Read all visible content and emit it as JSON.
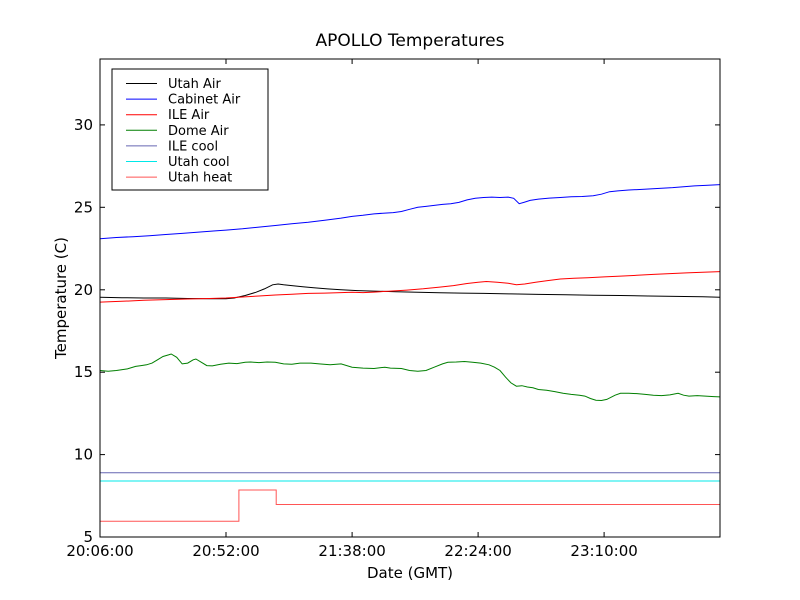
{
  "figure": {
    "title": "APOLLO Temperatures",
    "background": "#ffffff"
  },
  "chart_data": {
    "type": "line",
    "title": "APOLLO Temperatures",
    "xlabel": "Date (GMT)",
    "ylabel": "Temperature (C)",
    "x_unit": "minutes after 20:06:00 GMT",
    "xlim": [
      0,
      226.3
    ],
    "ylim": [
      5,
      34
    ],
    "grid": false,
    "legend_position": "upper left",
    "x_ticks": [
      {
        "t": 0,
        "label": "20:06:00"
      },
      {
        "t": 46,
        "label": "20:52:00"
      },
      {
        "t": 92,
        "label": "21:38:00"
      },
      {
        "t": 138,
        "label": "22:24:00"
      },
      {
        "t": 184,
        "label": "23:10:00"
      }
    ],
    "y_ticks": [
      5,
      10,
      15,
      20,
      25,
      30
    ],
    "series": [
      {
        "name": "Utah Air",
        "color": "#000000",
        "points": [
          [
            0,
            19.55
          ],
          [
            8,
            19.52
          ],
          [
            16,
            19.5
          ],
          [
            24,
            19.5
          ],
          [
            32,
            19.47
          ],
          [
            40,
            19.45
          ],
          [
            46,
            19.45
          ],
          [
            49,
            19.5
          ],
          [
            53,
            19.65
          ],
          [
            57,
            19.85
          ],
          [
            60,
            20.05
          ],
          [
            63,
            20.3
          ],
          [
            65,
            20.35
          ],
          [
            67,
            20.3
          ],
          [
            70,
            20.25
          ],
          [
            74,
            20.18
          ],
          [
            78,
            20.12
          ],
          [
            83,
            20.05
          ],
          [
            88,
            20.0
          ],
          [
            94,
            19.95
          ],
          [
            100,
            19.92
          ],
          [
            108,
            19.88
          ],
          [
            116,
            19.85
          ],
          [
            124,
            19.82
          ],
          [
            132,
            19.8
          ],
          [
            140,
            19.78
          ],
          [
            150,
            19.75
          ],
          [
            160,
            19.72
          ],
          [
            170,
            19.7
          ],
          [
            180,
            19.67
          ],
          [
            190,
            19.65
          ],
          [
            200,
            19.62
          ],
          [
            210,
            19.6
          ],
          [
            220,
            19.57
          ],
          [
            226.3,
            19.55
          ]
        ]
      },
      {
        "name": "Cabinet Air",
        "color": "#0000ff",
        "points": [
          [
            0,
            23.1
          ],
          [
            6,
            23.17
          ],
          [
            12,
            23.22
          ],
          [
            18,
            23.28
          ],
          [
            24,
            23.35
          ],
          [
            30,
            23.42
          ],
          [
            36,
            23.5
          ],
          [
            42,
            23.57
          ],
          [
            46,
            23.62
          ],
          [
            52,
            23.7
          ],
          [
            58,
            23.8
          ],
          [
            64,
            23.9
          ],
          [
            70,
            24.0
          ],
          [
            76,
            24.1
          ],
          [
            82,
            24.22
          ],
          [
            88,
            24.35
          ],
          [
            92,
            24.45
          ],
          [
            96,
            24.52
          ],
          [
            100,
            24.6
          ],
          [
            104,
            24.65
          ],
          [
            107,
            24.68
          ],
          [
            110,
            24.75
          ],
          [
            113,
            24.88
          ],
          [
            116,
            25.0
          ],
          [
            119,
            25.06
          ],
          [
            122,
            25.12
          ],
          [
            125,
            25.18
          ],
          [
            128,
            25.22
          ],
          [
            131,
            25.3
          ],
          [
            134,
            25.45
          ],
          [
            137,
            25.55
          ],
          [
            140,
            25.6
          ],
          [
            143,
            25.62
          ],
          [
            146,
            25.6
          ],
          [
            149,
            25.62
          ],
          [
            151,
            25.55
          ],
          [
            153,
            25.22
          ],
          [
            155,
            25.32
          ],
          [
            157,
            25.42
          ],
          [
            160,
            25.5
          ],
          [
            164,
            25.56
          ],
          [
            168,
            25.6
          ],
          [
            172,
            25.64
          ],
          [
            176,
            25.66
          ],
          [
            180,
            25.7
          ],
          [
            183,
            25.8
          ],
          [
            186,
            25.95
          ],
          [
            189,
            26.0
          ],
          [
            193,
            26.05
          ],
          [
            197,
            26.08
          ],
          [
            201,
            26.12
          ],
          [
            205,
            26.16
          ],
          [
            209,
            26.2
          ],
          [
            213,
            26.25
          ],
          [
            217,
            26.3
          ],
          [
            221,
            26.33
          ],
          [
            226.3,
            26.38
          ]
        ]
      },
      {
        "name": "ILE Air",
        "color": "#ff0000",
        "points": [
          [
            0,
            19.25
          ],
          [
            8,
            19.3
          ],
          [
            16,
            19.36
          ],
          [
            24,
            19.4
          ],
          [
            32,
            19.44
          ],
          [
            40,
            19.47
          ],
          [
            46,
            19.5
          ],
          [
            52,
            19.56
          ],
          [
            58,
            19.62
          ],
          [
            64,
            19.68
          ],
          [
            70,
            19.73
          ],
          [
            76,
            19.78
          ],
          [
            82,
            19.8
          ],
          [
            88,
            19.83
          ],
          [
            92,
            19.85
          ],
          [
            96,
            19.83
          ],
          [
            100,
            19.86
          ],
          [
            106,
            19.92
          ],
          [
            112,
            19.98
          ],
          [
            118,
            20.06
          ],
          [
            124,
            20.16
          ],
          [
            129,
            20.25
          ],
          [
            134,
            20.38
          ],
          [
            138,
            20.45
          ],
          [
            141,
            20.5
          ],
          [
            145,
            20.45
          ],
          [
            149,
            20.4
          ],
          [
            152,
            20.3
          ],
          [
            155,
            20.35
          ],
          [
            159,
            20.45
          ],
          [
            163,
            20.55
          ],
          [
            168,
            20.65
          ],
          [
            173,
            20.7
          ],
          [
            178,
            20.73
          ],
          [
            184,
            20.78
          ],
          [
            190,
            20.83
          ],
          [
            196,
            20.88
          ],
          [
            202,
            20.93
          ],
          [
            208,
            20.98
          ],
          [
            214,
            21.02
          ],
          [
            220,
            21.06
          ],
          [
            226.3,
            21.1
          ]
        ]
      },
      {
        "name": "Dome Air",
        "color": "#007f00",
        "points": [
          [
            0,
            15.1
          ],
          [
            3,
            15.05
          ],
          [
            6,
            15.1
          ],
          [
            10,
            15.2
          ],
          [
            13,
            15.35
          ],
          [
            15,
            15.4
          ],
          [
            17,
            15.45
          ],
          [
            19,
            15.55
          ],
          [
            21,
            15.75
          ],
          [
            23,
            15.95
          ],
          [
            25,
            16.05
          ],
          [
            26,
            16.1
          ],
          [
            28,
            15.9
          ],
          [
            30,
            15.5
          ],
          [
            32,
            15.55
          ],
          [
            34,
            15.75
          ],
          [
            35,
            15.8
          ],
          [
            37,
            15.6
          ],
          [
            39,
            15.4
          ],
          [
            41,
            15.38
          ],
          [
            44,
            15.48
          ],
          [
            47,
            15.55
          ],
          [
            50,
            15.52
          ],
          [
            53,
            15.6
          ],
          [
            55,
            15.62
          ],
          [
            58,
            15.58
          ],
          [
            61,
            15.62
          ],
          [
            64,
            15.6
          ],
          [
            67,
            15.5
          ],
          [
            70,
            15.48
          ],
          [
            73,
            15.55
          ],
          [
            77,
            15.55
          ],
          [
            80,
            15.5
          ],
          [
            84,
            15.45
          ],
          [
            88,
            15.5
          ],
          [
            92,
            15.3
          ],
          [
            96,
            15.25
          ],
          [
            100,
            15.22
          ],
          [
            104,
            15.3
          ],
          [
            106,
            15.25
          ],
          [
            110,
            15.22
          ],
          [
            113,
            15.1
          ],
          [
            116,
            15.05
          ],
          [
            119,
            15.1
          ],
          [
            122,
            15.3
          ],
          [
            125,
            15.5
          ],
          [
            127,
            15.6
          ],
          [
            130,
            15.62
          ],
          [
            133,
            15.65
          ],
          [
            136,
            15.6
          ],
          [
            139,
            15.55
          ],
          [
            142,
            15.45
          ],
          [
            144,
            15.3
          ],
          [
            146,
            15.1
          ],
          [
            148,
            14.7
          ],
          [
            150,
            14.35
          ],
          [
            152,
            14.15
          ],
          [
            154,
            14.18
          ],
          [
            156,
            14.1
          ],
          [
            158,
            14.05
          ],
          [
            160,
            13.95
          ],
          [
            163,
            13.9
          ],
          [
            166,
            13.82
          ],
          [
            169,
            13.72
          ],
          [
            172,
            13.65
          ],
          [
            175,
            13.6
          ],
          [
            177,
            13.55
          ],
          [
            179,
            13.4
          ],
          [
            181,
            13.3
          ],
          [
            183,
            13.28
          ],
          [
            185,
            13.35
          ],
          [
            188,
            13.6
          ],
          [
            190,
            13.72
          ],
          [
            193,
            13.72
          ],
          [
            196,
            13.7
          ],
          [
            199,
            13.65
          ],
          [
            202,
            13.6
          ],
          [
            205,
            13.58
          ],
          [
            208,
            13.62
          ],
          [
            211,
            13.72
          ],
          [
            213,
            13.6
          ],
          [
            215,
            13.55
          ],
          [
            218,
            13.58
          ],
          [
            221,
            13.55
          ],
          [
            224,
            13.52
          ],
          [
            226.3,
            13.5
          ]
        ]
      },
      {
        "name": "ILE cool",
        "color": "#6666b2",
        "points": [
          [
            0,
            8.9
          ],
          [
            226.3,
            8.9
          ]
        ]
      },
      {
        "name": "Utah cool",
        "color": "#00e8e8",
        "points": [
          [
            0,
            8.4
          ],
          [
            226.3,
            8.4
          ]
        ]
      },
      {
        "name": "Utah heat",
        "color": "#ff5555",
        "points": [
          [
            0,
            5.95
          ],
          [
            50.7,
            5.95
          ],
          [
            50.7,
            7.85
          ],
          [
            64.3,
            7.85
          ],
          [
            64.3,
            6.97
          ],
          [
            226.3,
            6.97
          ]
        ]
      }
    ]
  }
}
